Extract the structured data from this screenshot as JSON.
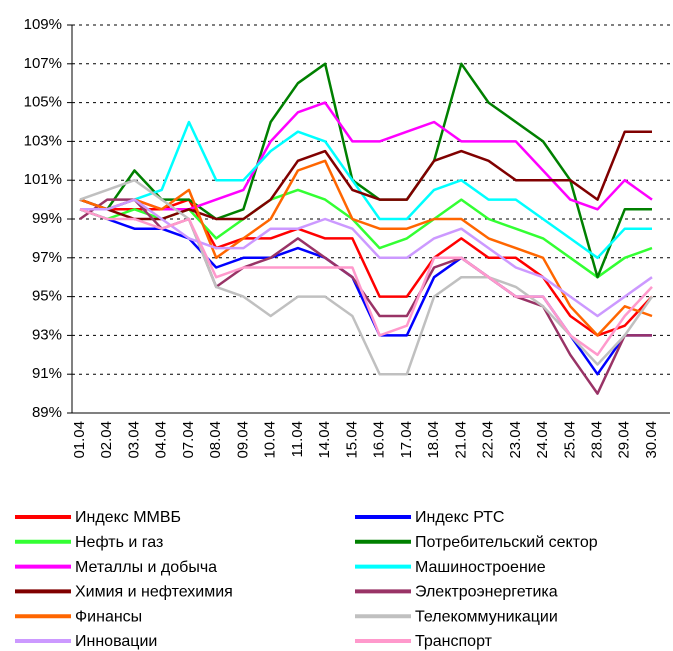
{
  "chart_data": {
    "type": "line",
    "categories": [
      "01.04",
      "02.04",
      "03.04",
      "04.04",
      "07.04",
      "08.04",
      "09.04",
      "10.04",
      "11.04",
      "14.04",
      "15.04",
      "16.04",
      "17.04",
      "18.04",
      "21.04",
      "22.04",
      "23.04",
      "24.04",
      "25.04",
      "28.04",
      "29.04",
      "30.04"
    ],
    "ylim": [
      89,
      109
    ],
    "yticks": [
      {
        "value": 89,
        "label": "89%"
      },
      {
        "value": 91,
        "label": "91%"
      },
      {
        "value": 93,
        "label": "93%"
      },
      {
        "value": 95,
        "label": "95%"
      },
      {
        "value": 97,
        "label": "97%"
      },
      {
        "value": 99,
        "label": "99%"
      },
      {
        "value": 101,
        "label": "101%"
      },
      {
        "value": 103,
        "label": "103%"
      },
      {
        "value": 105,
        "label": "105%"
      },
      {
        "value": 107,
        "label": "107%"
      },
      {
        "value": 109,
        "label": "109%"
      }
    ],
    "grid": true,
    "series": [
      {
        "name": "Индекс ММВБ",
        "color": "#ff0000",
        "values": [
          100,
          99.5,
          99.5,
          99.5,
          100,
          97.5,
          98,
          98,
          98.5,
          98,
          98,
          95,
          95,
          97,
          98,
          97,
          97,
          96,
          94,
          93,
          93.5,
          95
        ]
      },
      {
        "name": "Индекс РТС",
        "color": "#0000ff",
        "values": [
          99.5,
          99,
          98.5,
          98.5,
          98,
          96.5,
          97,
          97,
          97.5,
          97,
          96,
          93,
          93,
          96,
          97,
          96,
          95,
          95,
          93,
          91,
          93,
          93
        ]
      },
      {
        "name": "Нефть и газ",
        "color": "#33ff33",
        "values": [
          99.5,
          99,
          99.5,
          99,
          99.5,
          98,
          99,
          100,
          100.5,
          100,
          99,
          97.5,
          98,
          99,
          100,
          99,
          98.5,
          98,
          97,
          96,
          97,
          97.5
        ]
      },
      {
        "name": "Потребительский сектор",
        "color": "#008000",
        "values": [
          100,
          99.5,
          101.5,
          100,
          100,
          99,
          99.5,
          104,
          106,
          107,
          101,
          100,
          100,
          102,
          107,
          105,
          104,
          103,
          101,
          96,
          99.5,
          99.5
        ]
      },
      {
        "name": "Металлы и добыча",
        "color": "#ff00ff",
        "values": [
          100,
          99.5,
          100,
          99.5,
          99.5,
          100,
          100.5,
          103,
          104.5,
          105,
          103,
          103,
          103.5,
          104,
          103,
          103,
          103,
          101.5,
          100,
          99.5,
          101,
          100
        ]
      },
      {
        "name": "Машиностроение",
        "color": "#00ffff",
        "values": [
          100,
          99.5,
          100,
          100.5,
          104,
          101,
          101,
          102.5,
          103.5,
          103,
          101,
          99,
          99,
          100.5,
          101,
          100,
          100,
          99,
          98,
          97,
          98.5,
          98.5
        ]
      },
      {
        "name": "Химия и нефтехимия",
        "color": "#800000",
        "values": [
          100,
          99.5,
          99,
          99,
          99.5,
          99,
          99,
          100,
          102,
          102.5,
          100.5,
          100,
          100,
          102,
          102.5,
          102,
          101,
          101,
          101,
          100,
          103.5,
          103.5
        ]
      },
      {
        "name": "Электроэнергетика",
        "color": "#993366",
        "values": [
          99,
          100,
          100,
          98.5,
          99,
          95.5,
          96.5,
          97,
          98,
          97,
          96,
          94,
          94,
          96.5,
          97,
          96,
          95,
          94.5,
          92,
          90,
          93,
          93
        ]
      },
      {
        "name": "Финансы",
        "color": "#ff6600",
        "values": [
          100,
          99.5,
          100,
          99.5,
          100.5,
          97,
          98,
          99,
          101.5,
          102,
          99,
          98.5,
          98.5,
          99,
          99,
          98,
          97.5,
          97,
          94.5,
          93,
          94.5,
          94
        ]
      },
      {
        "name": "Телекоммуникации",
        "color": "#c0c0c0",
        "values": [
          100,
          100.5,
          101,
          100,
          99,
          95.5,
          95,
          94,
          95,
          95,
          94,
          91,
          91,
          95,
          96,
          96,
          95.5,
          94.5,
          93,
          91.5,
          93,
          95
        ]
      },
      {
        "name": "Инновации",
        "color": "#cc99ff",
        "values": [
          99.5,
          99.5,
          100,
          99,
          98,
          97.5,
          97.5,
          98.5,
          98.5,
          99,
          98.5,
          97,
          97,
          98,
          98.5,
          97.5,
          96.5,
          96,
          95,
          94,
          95,
          96
        ]
      },
      {
        "name": "Транспорт",
        "color": "#ff99cc",
        "values": [
          99.5,
          99,
          99,
          98.5,
          99,
          96,
          96.5,
          96.5,
          96.5,
          96.5,
          96.5,
          93,
          93.5,
          97,
          97,
          96,
          95,
          95,
          93,
          92,
          94,
          95.5
        ]
      }
    ]
  }
}
